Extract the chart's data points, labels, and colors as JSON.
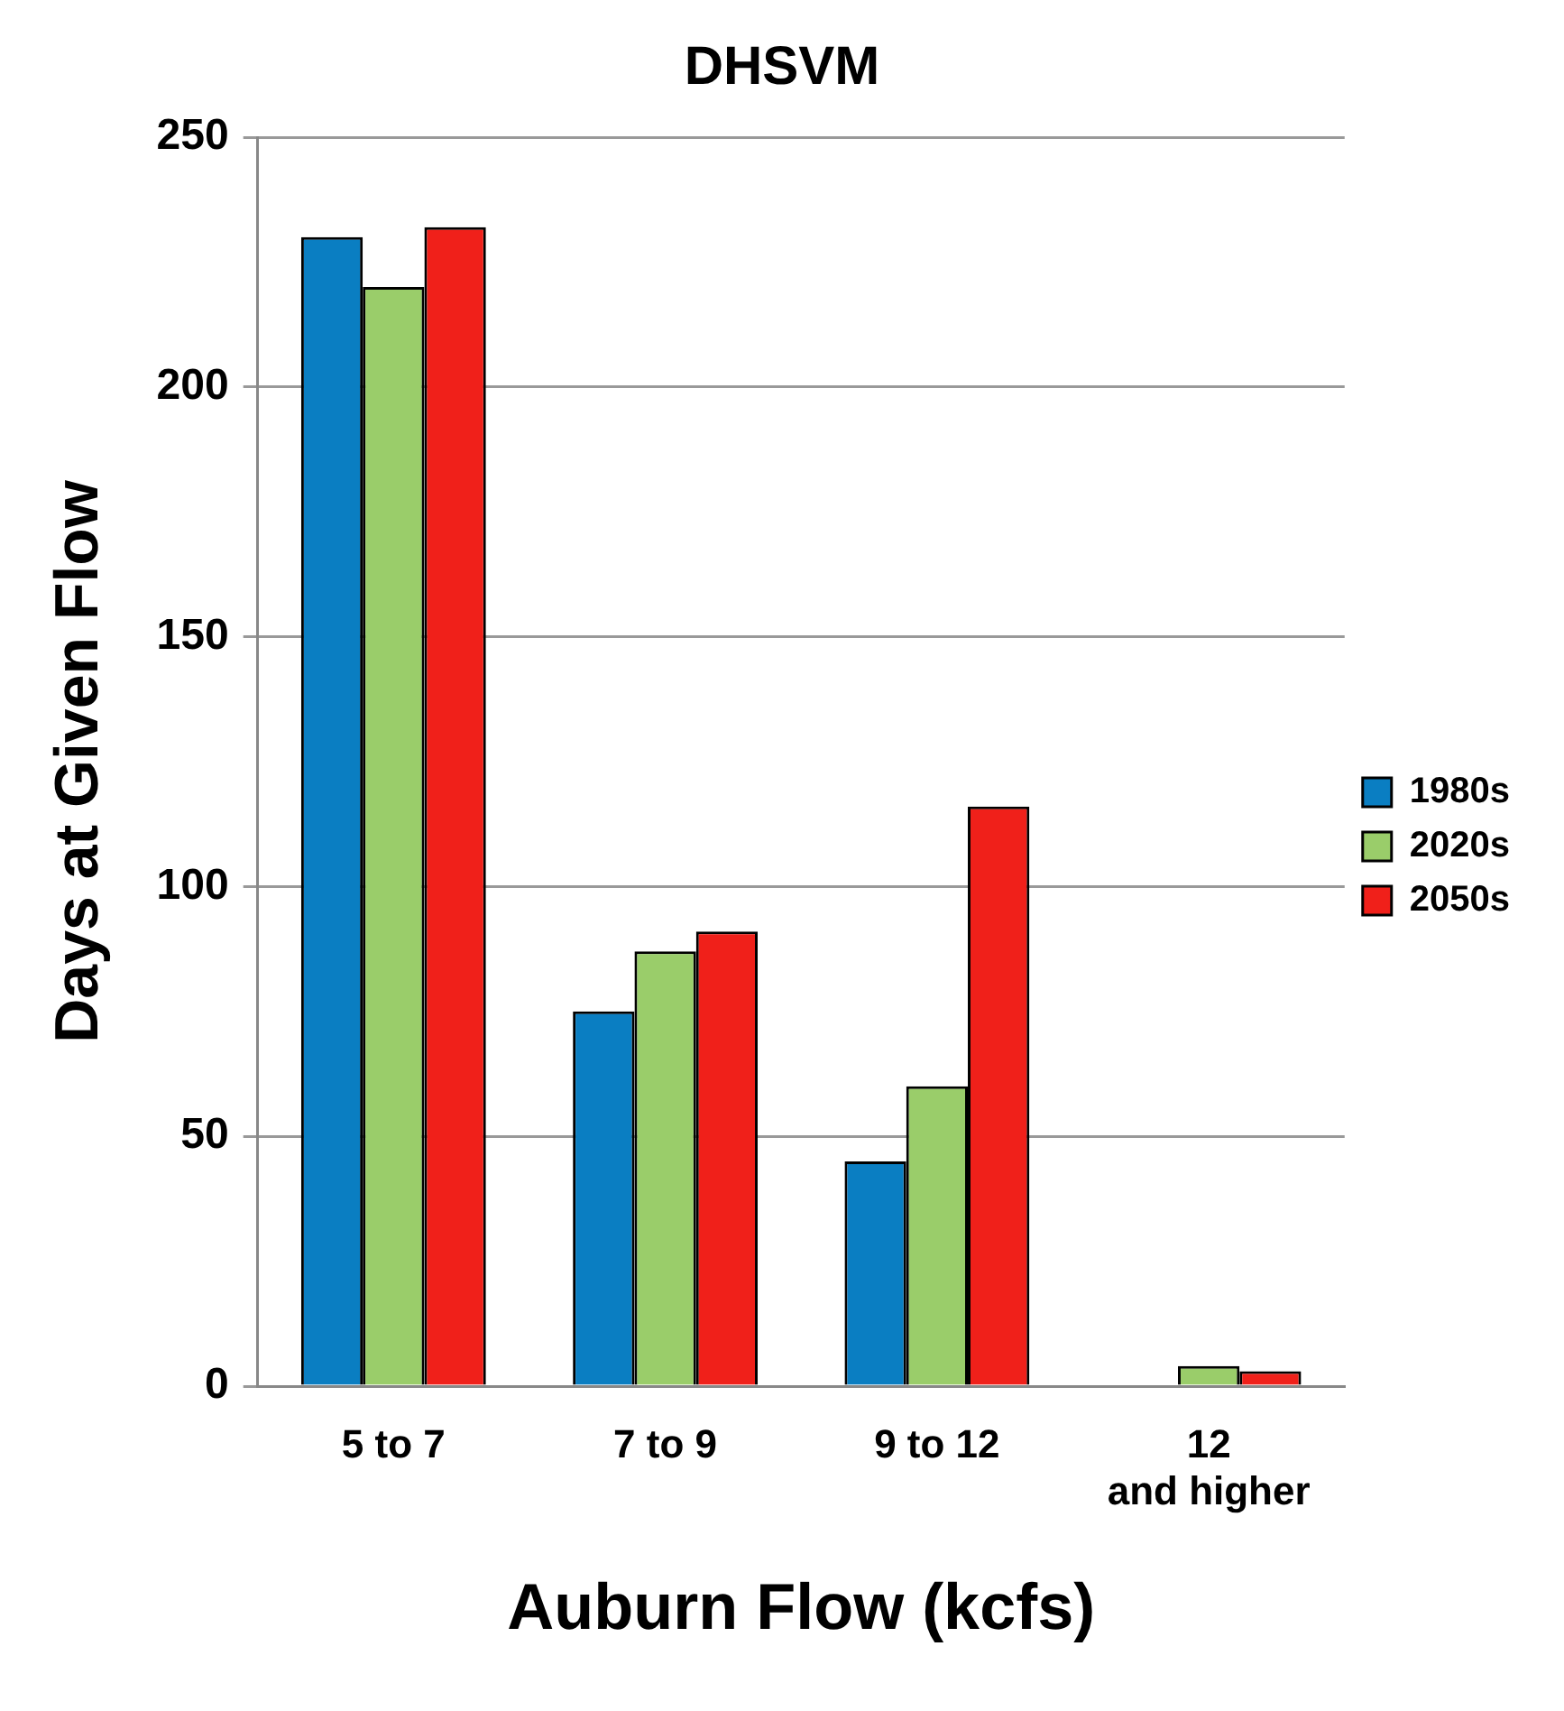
{
  "chart_data": {
    "type": "bar",
    "title": "DHSVM",
    "xlabel": "Auburn Flow (kcfs)",
    "ylabel": "Days at Given Flow",
    "categories": [
      "5 to 7",
      "7 to 9",
      "9 to 12",
      "12 and higher"
    ],
    "series": [
      {
        "name": "1980s",
        "color": "#0a7ec2",
        "values": [
          230,
          75,
          45,
          0
        ]
      },
      {
        "name": "2020s",
        "color": "#9acd6a",
        "values": [
          220,
          87,
          60,
          4
        ]
      },
      {
        "name": "2050s",
        "color": "#f0201a",
        "values": [
          232,
          91,
          116,
          3
        ]
      }
    ],
    "ylim": [
      0,
      250
    ],
    "yticks": [
      0,
      50,
      100,
      150,
      200,
      250
    ],
    "grid": "y",
    "legend": "right"
  }
}
